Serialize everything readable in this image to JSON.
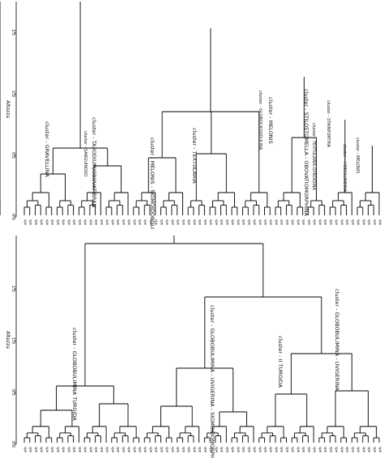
{
  "dendrogram_top": {
    "axis_title": "Altezza",
    "ticks": [
      "0.0",
      "0.5",
      "1.0",
      "1.5"
    ],
    "leaf_label": "spe",
    "leaf_count": 66,
    "clusters": [
      {
        "label": "cluster - GRAVELLINA"
      },
      {
        "label": "cluster - SANGUINOSO"
      },
      {
        "label": "cluster - TAXODIUM/OBOVATIBRAN"
      },
      {
        "label": "cluster - MELONIS - SIGMOIDOBOLONIDIS"
      },
      {
        "label": "cluster - TEXTULARIA"
      },
      {
        "label": "cluster - GLOBOCASSIDULINA"
      },
      {
        "label": "cluster - MELONIS"
      },
      {
        "label": "cluster - STILOSTOMELLA - OBOVATIOMORPHINA"
      },
      {
        "label": "cluster - TEXTULARIA-GYROIDINA"
      },
      {
        "label": "cluster - STAINFORTHIA"
      },
      {
        "label": "cluster - HOEGLUNDINA"
      },
      {
        "label": "cluster - MELONIS"
      }
    ]
  },
  "dendrogram_bottom": {
    "axis_title": "Altezza",
    "ticks": [
      "0.0",
      "0.5",
      "1.0",
      "1.5"
    ],
    "leaf_label": "spe",
    "leaf_count": 66,
    "clusters": [
      {
        "label": "cluster - GLOBOBULIMINA TURGIDA"
      },
      {
        "label": "cluster - GLOBOBULIMINA - UVIGERINA - SIGMOIDOMORPHINA"
      },
      {
        "label": "cluster - II TURGIDA"
      },
      {
        "label": "cluster - GLOBOBULIMINA - UVIGERINA"
      }
    ]
  }
}
